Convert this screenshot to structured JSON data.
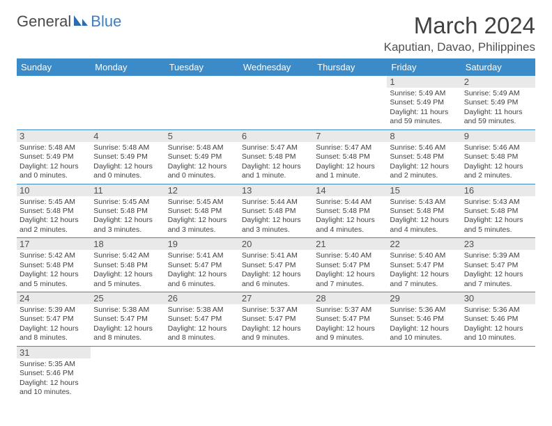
{
  "logo": {
    "part1": "General",
    "part2": "Blue"
  },
  "title": "March 2024",
  "location": "Kaputian, Davao, Philippines",
  "colors": {
    "header_bg": "#3b8bc9",
    "header_text": "#ffffff",
    "daynum_bg": "#e9e9e9",
    "row_border": "#3b8bc9",
    "body_text": "#404040",
    "logo_gray": "#4a4a4a",
    "logo_blue": "#3b7fc4"
  },
  "weekdays": [
    "Sunday",
    "Monday",
    "Tuesday",
    "Wednesday",
    "Thursday",
    "Friday",
    "Saturday"
  ],
  "weeks": [
    [
      null,
      null,
      null,
      null,
      null,
      {
        "n": "1",
        "sr": "Sunrise: 5:49 AM",
        "ss": "Sunset: 5:49 PM",
        "dl1": "Daylight: 11 hours",
        "dl2": "and 59 minutes."
      },
      {
        "n": "2",
        "sr": "Sunrise: 5:49 AM",
        "ss": "Sunset: 5:49 PM",
        "dl1": "Daylight: 11 hours",
        "dl2": "and 59 minutes."
      }
    ],
    [
      {
        "n": "3",
        "sr": "Sunrise: 5:48 AM",
        "ss": "Sunset: 5:49 PM",
        "dl1": "Daylight: 12 hours",
        "dl2": "and 0 minutes."
      },
      {
        "n": "4",
        "sr": "Sunrise: 5:48 AM",
        "ss": "Sunset: 5:49 PM",
        "dl1": "Daylight: 12 hours",
        "dl2": "and 0 minutes."
      },
      {
        "n": "5",
        "sr": "Sunrise: 5:48 AM",
        "ss": "Sunset: 5:49 PM",
        "dl1": "Daylight: 12 hours",
        "dl2": "and 0 minutes."
      },
      {
        "n": "6",
        "sr": "Sunrise: 5:47 AM",
        "ss": "Sunset: 5:48 PM",
        "dl1": "Daylight: 12 hours",
        "dl2": "and 1 minute."
      },
      {
        "n": "7",
        "sr": "Sunrise: 5:47 AM",
        "ss": "Sunset: 5:48 PM",
        "dl1": "Daylight: 12 hours",
        "dl2": "and 1 minute."
      },
      {
        "n": "8",
        "sr": "Sunrise: 5:46 AM",
        "ss": "Sunset: 5:48 PM",
        "dl1": "Daylight: 12 hours",
        "dl2": "and 2 minutes."
      },
      {
        "n": "9",
        "sr": "Sunrise: 5:46 AM",
        "ss": "Sunset: 5:48 PM",
        "dl1": "Daylight: 12 hours",
        "dl2": "and 2 minutes."
      }
    ],
    [
      {
        "n": "10",
        "sr": "Sunrise: 5:45 AM",
        "ss": "Sunset: 5:48 PM",
        "dl1": "Daylight: 12 hours",
        "dl2": "and 2 minutes."
      },
      {
        "n": "11",
        "sr": "Sunrise: 5:45 AM",
        "ss": "Sunset: 5:48 PM",
        "dl1": "Daylight: 12 hours",
        "dl2": "and 3 minutes."
      },
      {
        "n": "12",
        "sr": "Sunrise: 5:45 AM",
        "ss": "Sunset: 5:48 PM",
        "dl1": "Daylight: 12 hours",
        "dl2": "and 3 minutes."
      },
      {
        "n": "13",
        "sr": "Sunrise: 5:44 AM",
        "ss": "Sunset: 5:48 PM",
        "dl1": "Daylight: 12 hours",
        "dl2": "and 3 minutes."
      },
      {
        "n": "14",
        "sr": "Sunrise: 5:44 AM",
        "ss": "Sunset: 5:48 PM",
        "dl1": "Daylight: 12 hours",
        "dl2": "and 4 minutes."
      },
      {
        "n": "15",
        "sr": "Sunrise: 5:43 AM",
        "ss": "Sunset: 5:48 PM",
        "dl1": "Daylight: 12 hours",
        "dl2": "and 4 minutes."
      },
      {
        "n": "16",
        "sr": "Sunrise: 5:43 AM",
        "ss": "Sunset: 5:48 PM",
        "dl1": "Daylight: 12 hours",
        "dl2": "and 5 minutes."
      }
    ],
    [
      {
        "n": "17",
        "sr": "Sunrise: 5:42 AM",
        "ss": "Sunset: 5:48 PM",
        "dl1": "Daylight: 12 hours",
        "dl2": "and 5 minutes."
      },
      {
        "n": "18",
        "sr": "Sunrise: 5:42 AM",
        "ss": "Sunset: 5:48 PM",
        "dl1": "Daylight: 12 hours",
        "dl2": "and 5 minutes."
      },
      {
        "n": "19",
        "sr": "Sunrise: 5:41 AM",
        "ss": "Sunset: 5:47 PM",
        "dl1": "Daylight: 12 hours",
        "dl2": "and 6 minutes."
      },
      {
        "n": "20",
        "sr": "Sunrise: 5:41 AM",
        "ss": "Sunset: 5:47 PM",
        "dl1": "Daylight: 12 hours",
        "dl2": "and 6 minutes."
      },
      {
        "n": "21",
        "sr": "Sunrise: 5:40 AM",
        "ss": "Sunset: 5:47 PM",
        "dl1": "Daylight: 12 hours",
        "dl2": "and 7 minutes."
      },
      {
        "n": "22",
        "sr": "Sunrise: 5:40 AM",
        "ss": "Sunset: 5:47 PM",
        "dl1": "Daylight: 12 hours",
        "dl2": "and 7 minutes."
      },
      {
        "n": "23",
        "sr": "Sunrise: 5:39 AM",
        "ss": "Sunset: 5:47 PM",
        "dl1": "Daylight: 12 hours",
        "dl2": "and 7 minutes."
      }
    ],
    [
      {
        "n": "24",
        "sr": "Sunrise: 5:39 AM",
        "ss": "Sunset: 5:47 PM",
        "dl1": "Daylight: 12 hours",
        "dl2": "and 8 minutes."
      },
      {
        "n": "25",
        "sr": "Sunrise: 5:38 AM",
        "ss": "Sunset: 5:47 PM",
        "dl1": "Daylight: 12 hours",
        "dl2": "and 8 minutes."
      },
      {
        "n": "26",
        "sr": "Sunrise: 5:38 AM",
        "ss": "Sunset: 5:47 PM",
        "dl1": "Daylight: 12 hours",
        "dl2": "and 8 minutes."
      },
      {
        "n": "27",
        "sr": "Sunrise: 5:37 AM",
        "ss": "Sunset: 5:47 PM",
        "dl1": "Daylight: 12 hours",
        "dl2": "and 9 minutes."
      },
      {
        "n": "28",
        "sr": "Sunrise: 5:37 AM",
        "ss": "Sunset: 5:47 PM",
        "dl1": "Daylight: 12 hours",
        "dl2": "and 9 minutes."
      },
      {
        "n": "29",
        "sr": "Sunrise: 5:36 AM",
        "ss": "Sunset: 5:46 PM",
        "dl1": "Daylight: 12 hours",
        "dl2": "and 10 minutes."
      },
      {
        "n": "30",
        "sr": "Sunrise: 5:36 AM",
        "ss": "Sunset: 5:46 PM",
        "dl1": "Daylight: 12 hours",
        "dl2": "and 10 minutes."
      }
    ],
    [
      {
        "n": "31",
        "sr": "Sunrise: 5:35 AM",
        "ss": "Sunset: 5:46 PM",
        "dl1": "Daylight: 12 hours",
        "dl2": "and 10 minutes."
      },
      null,
      null,
      null,
      null,
      null,
      null
    ]
  ]
}
